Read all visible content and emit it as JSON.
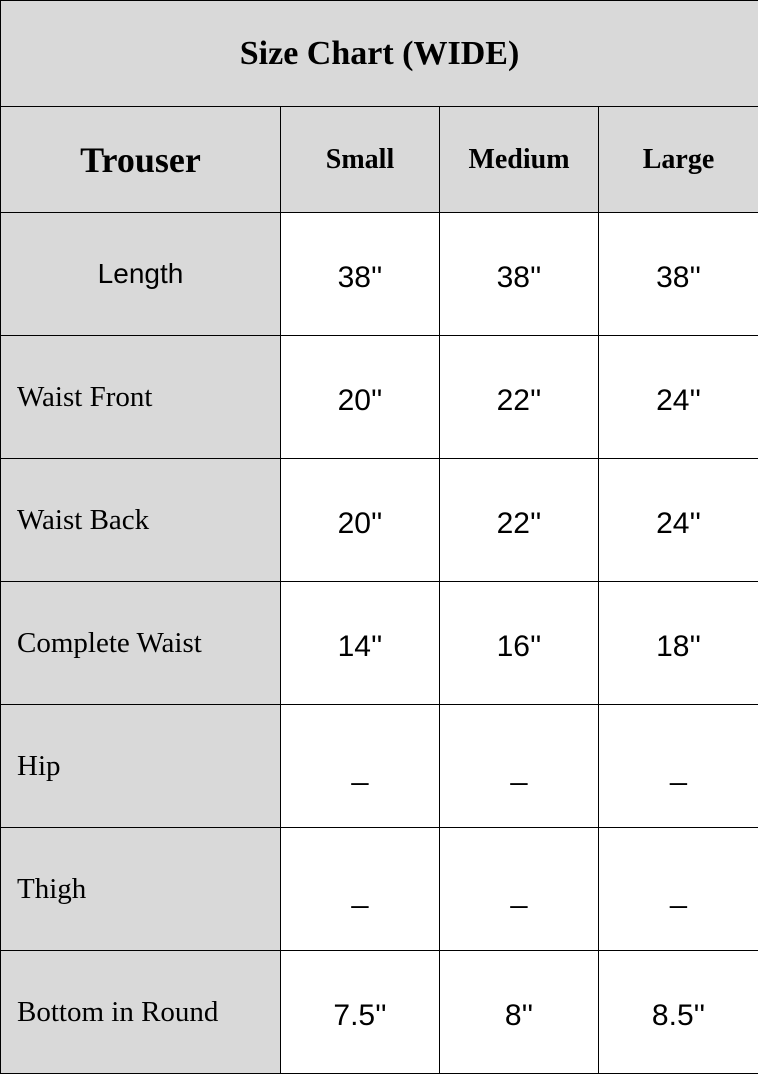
{
  "title": "Size Chart (WIDE)",
  "header": [
    "Trouser",
    "Small",
    "Medium",
    "Large"
  ],
  "rows": [
    {
      "label": "Length",
      "values": [
        "38''",
        "38''",
        "38''"
      ]
    },
    {
      "label": "Waist Front",
      "values": [
        "20''",
        "22''",
        "24''"
      ]
    },
    {
      "label": "Waist Back",
      "values": [
        "20''",
        "22''",
        "24''"
      ]
    },
    {
      "label": "Complete Waist",
      "values": [
        "14''",
        "16''",
        "18''"
      ]
    },
    {
      "label": "Hip",
      "values": [
        "_",
        "_",
        "_"
      ]
    },
    {
      "label": "Thigh",
      "values": [
        "_",
        "_",
        "_"
      ]
    },
    {
      "label": "Bottom in Round",
      "values": [
        "7.5''",
        "8''",
        "8.5''"
      ]
    }
  ],
  "colors": {
    "header_fill": "#d9d9d9",
    "cell_fill": "#ffffff",
    "border": "#000000"
  }
}
